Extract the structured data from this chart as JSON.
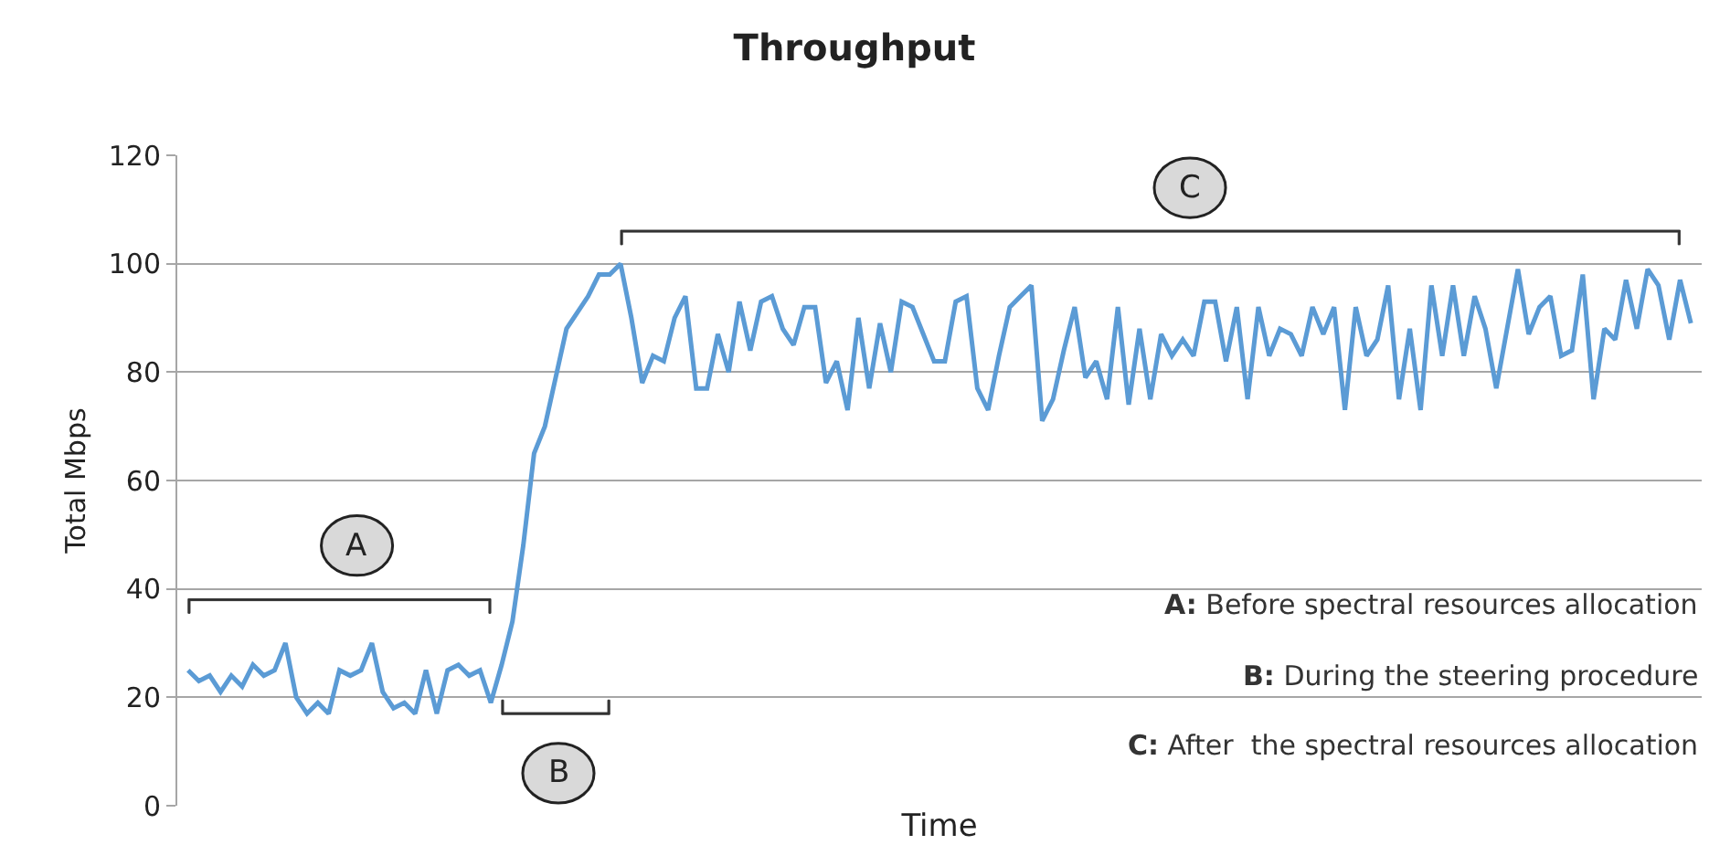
{
  "chart_data": {
    "type": "line",
    "title": "Throughput",
    "xlabel": "Time",
    "ylabel": "Total Mbps",
    "categories": [
      null,
      null,
      null,
      null,
      null,
      null,
      null,
      null,
      null,
      null,
      null,
      null,
      null,
      null,
      null,
      null,
      null,
      null,
      null,
      null,
      null,
      null,
      null,
      null,
      null,
      null,
      null,
      null,
      null,
      null,
      null,
      null,
      null,
      null,
      null,
      null,
      null,
      null,
      null,
      null,
      null,
      null,
      null,
      null,
      null,
      null,
      null,
      null,
      null,
      null,
      null,
      null,
      null,
      null,
      null,
      null,
      null,
      null,
      null,
      null,
      null,
      null,
      null,
      null,
      null,
      null,
      null,
      null,
      null,
      null,
      null,
      null,
      null,
      null,
      null,
      null,
      null,
      null,
      null,
      null,
      null,
      null,
      null,
      null,
      null,
      null,
      null,
      null,
      null,
      null,
      null,
      null,
      null,
      null,
      null,
      null,
      null,
      null,
      null,
      null,
      null,
      null,
      null,
      null,
      null,
      null,
      null,
      null,
      null,
      null,
      null,
      null,
      null,
      null,
      null,
      null,
      null,
      null,
      null,
      null,
      null,
      null,
      null,
      null,
      null,
      null,
      null,
      null,
      null,
      null,
      null,
      null,
      null,
      null,
      null,
      null,
      null,
      null,
      null,
      null
    ],
    "series": [
      {
        "color": "#5b9bd5",
        "values": [
          25,
          23,
          24,
          21,
          24,
          22,
          26,
          24,
          25,
          30,
          20,
          17,
          19,
          17,
          25,
          24,
          25,
          30,
          21,
          18,
          19,
          17,
          25,
          17,
          25,
          26,
          24,
          25,
          19,
          26,
          34,
          48,
          65,
          70,
          79,
          88,
          91,
          94,
          98,
          98,
          100,
          90,
          78,
          83,
          82,
          90,
          94,
          77,
          77,
          87,
          80,
          93,
          84,
          93,
          94,
          88,
          85,
          92,
          92,
          78,
          82,
          73,
          90,
          77,
          89,
          80,
          93,
          92,
          87,
          82,
          82,
          93,
          94,
          77,
          73,
          83,
          92,
          94,
          96,
          71,
          75,
          84,
          92,
          79,
          82,
          75,
          92,
          74,
          88,
          75,
          87,
          83,
          86,
          83,
          93,
          93,
          82,
          92,
          75,
          92,
          83,
          88,
          87,
          83,
          92,
          87,
          92,
          73,
          92,
          83,
          86,
          96,
          75,
          88,
          73,
          96,
          83,
          96,
          83,
          94,
          88,
          77,
          88,
          99,
          87,
          92,
          94,
          83,
          84,
          98,
          75,
          88,
          86,
          97,
          88,
          99,
          96,
          86,
          97,
          89
        ]
      }
    ],
    "ylim": [
      0,
      120
    ],
    "yticks": [
      0,
      20,
      40,
      60,
      80,
      100,
      120
    ],
    "grid": "y",
    "marker": "none",
    "line_style": "solid",
    "annotations": [
      "A",
      "B",
      "C",
      "A: Before spectral resources allocation",
      "B: During the steering procedure",
      "C: After  the spectral resources allocation"
    ]
  }
}
